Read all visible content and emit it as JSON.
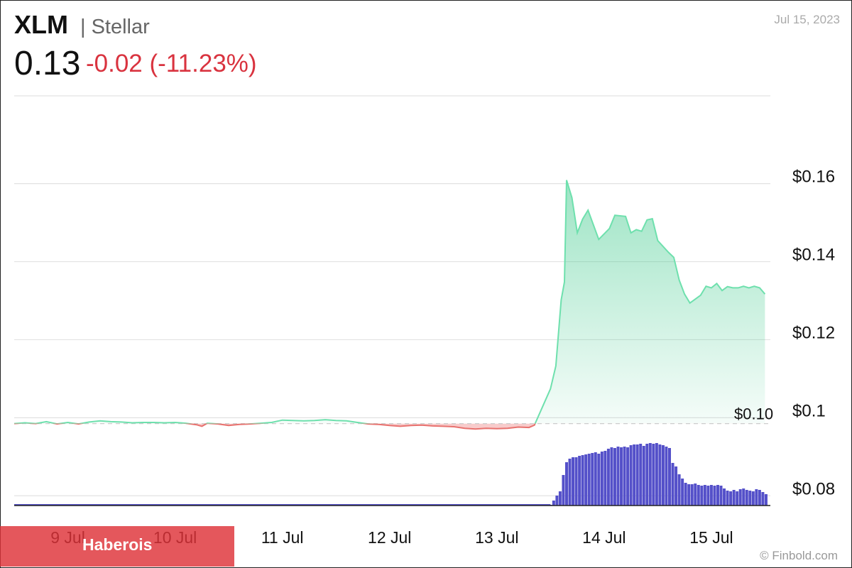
{
  "header": {
    "ticker": "XLM",
    "name": "| Stellar",
    "price": "0.13",
    "change": "-0.02 (-11.23%)",
    "date": "Jul 15, 2023"
  },
  "banner": {
    "text": "Haberois"
  },
  "credit": "© Finbold.com",
  "colors": {
    "up_line": "#6ee0ad",
    "down_line": "#e8726f",
    "up_fill": "#3cc98a",
    "down_fill": "#f08a8a",
    "volume": "#5450c9",
    "grid": "#e2e2e2",
    "text": "#111111"
  },
  "chart_data": {
    "type": "area",
    "y_ticks": [
      {
        "value": 0.16,
        "label": "$0.16"
      },
      {
        "value": 0.14,
        "label": "$0.14"
      },
      {
        "value": 0.12,
        "label": "$0.12"
      },
      {
        "value": 0.1,
        "label": "$0.1"
      },
      {
        "value": 0.08,
        "label": "$0.08"
      }
    ],
    "x_ticks": [
      {
        "value": 0.5,
        "label": "9 Jul"
      },
      {
        "value": 1.5,
        "label": "10 Jul"
      },
      {
        "value": 2.5,
        "label": "11 Jul"
      },
      {
        "value": 3.5,
        "label": "12 Jul"
      },
      {
        "value": 4.5,
        "label": "13 Jul"
      },
      {
        "value": 5.5,
        "label": "14 Jul"
      },
      {
        "value": 6.5,
        "label": "15 Jul"
      }
    ],
    "baseline": {
      "value": 0.0985,
      "label": "$0.10"
    },
    "ylim": [
      0.0775,
      0.1825
    ],
    "xlim": [
      0,
      7.05
    ],
    "series": [
      {
        "values": [
          [
            0.0,
            0.0985
          ],
          [
            0.1,
            0.0987
          ],
          [
            0.2,
            0.0985
          ],
          [
            0.3,
            0.099
          ],
          [
            0.4,
            0.0984
          ],
          [
            0.5,
            0.0988
          ],
          [
            0.6,
            0.0984
          ],
          [
            0.7,
            0.0989
          ],
          [
            0.8,
            0.0992
          ],
          [
            0.9,
            0.099
          ],
          [
            1.0,
            0.0989
          ],
          [
            1.1,
            0.0987
          ],
          [
            1.2,
            0.0988
          ],
          [
            1.3,
            0.0988
          ],
          [
            1.4,
            0.0987
          ],
          [
            1.5,
            0.0988
          ],
          [
            1.6,
            0.0986
          ],
          [
            1.7,
            0.0982
          ],
          [
            1.75,
            0.0978
          ],
          [
            1.8,
            0.0986
          ],
          [
            1.9,
            0.0984
          ],
          [
            2.0,
            0.098
          ],
          [
            2.1,
            0.0983
          ],
          [
            2.2,
            0.0984
          ],
          [
            2.3,
            0.0986
          ],
          [
            2.4,
            0.0988
          ],
          [
            2.5,
            0.0994
          ],
          [
            2.6,
            0.0993
          ],
          [
            2.7,
            0.0992
          ],
          [
            2.8,
            0.0993
          ],
          [
            2.9,
            0.0995
          ],
          [
            3.0,
            0.0993
          ],
          [
            3.1,
            0.0992
          ],
          [
            3.2,
            0.0988
          ],
          [
            3.3,
            0.0984
          ],
          [
            3.4,
            0.0983
          ],
          [
            3.5,
            0.098
          ],
          [
            3.6,
            0.0978
          ],
          [
            3.7,
            0.098
          ],
          [
            3.8,
            0.0981
          ],
          [
            3.9,
            0.0979
          ],
          [
            4.0,
            0.0978
          ],
          [
            4.1,
            0.0977
          ],
          [
            4.2,
            0.0973
          ],
          [
            4.3,
            0.0971
          ],
          [
            4.4,
            0.0973
          ],
          [
            4.5,
            0.0972
          ],
          [
            4.6,
            0.0973
          ],
          [
            4.7,
            0.0976
          ],
          [
            4.8,
            0.0975
          ],
          [
            4.85,
            0.0981
          ],
          [
            5.0,
            0.1074
          ],
          [
            5.05,
            0.1133
          ],
          [
            5.1,
            0.1302
          ],
          [
            5.13,
            0.1348
          ],
          [
            5.15,
            0.1609
          ],
          [
            5.2,
            0.1564
          ],
          [
            5.25,
            0.1474
          ],
          [
            5.3,
            0.1509
          ],
          [
            5.35,
            0.1532
          ],
          [
            5.45,
            0.1457
          ],
          [
            5.55,
            0.1485
          ],
          [
            5.6,
            0.1519
          ],
          [
            5.7,
            0.1516
          ],
          [
            5.75,
            0.1474
          ],
          [
            5.8,
            0.1482
          ],
          [
            5.85,
            0.1478
          ],
          [
            5.9,
            0.1507
          ],
          [
            5.95,
            0.151
          ],
          [
            6.0,
            0.1454
          ],
          [
            6.1,
            0.1424
          ],
          [
            6.15,
            0.1411
          ],
          [
            6.2,
            0.1353
          ],
          [
            6.25,
            0.1317
          ],
          [
            6.3,
            0.1294
          ],
          [
            6.4,
            0.1314
          ],
          [
            6.45,
            0.1337
          ],
          [
            6.5,
            0.1333
          ],
          [
            6.55,
            0.1344
          ],
          [
            6.6,
            0.1326
          ],
          [
            6.65,
            0.1336
          ],
          [
            6.7,
            0.1333
          ],
          [
            6.75,
            0.1333
          ],
          [
            6.8,
            0.1337
          ],
          [
            6.85,
            0.1333
          ],
          [
            6.9,
            0.1337
          ],
          [
            6.95,
            0.1333
          ],
          [
            7.0,
            0.1317
          ]
        ]
      }
    ],
    "volume": [
      [
        5.0,
        0.01
      ],
      [
        5.03,
        0.07
      ],
      [
        5.06,
        0.14
      ],
      [
        5.09,
        0.2
      ],
      [
        5.12,
        0.43
      ],
      [
        5.15,
        0.61
      ],
      [
        5.18,
        0.66
      ],
      [
        5.21,
        0.68
      ],
      [
        5.24,
        0.68
      ],
      [
        5.27,
        0.7
      ],
      [
        5.3,
        0.71
      ],
      [
        5.33,
        0.72
      ],
      [
        5.36,
        0.73
      ],
      [
        5.39,
        0.74
      ],
      [
        5.42,
        0.75
      ],
      [
        5.45,
        0.73
      ],
      [
        5.48,
        0.76
      ],
      [
        5.51,
        0.77
      ],
      [
        5.54,
        0.8
      ],
      [
        5.57,
        0.82
      ],
      [
        5.6,
        0.81
      ],
      [
        5.63,
        0.83
      ],
      [
        5.66,
        0.82
      ],
      [
        5.69,
        0.83
      ],
      [
        5.72,
        0.82
      ],
      [
        5.75,
        0.85
      ],
      [
        5.78,
        0.86
      ],
      [
        5.81,
        0.86
      ],
      [
        5.84,
        0.87
      ],
      [
        5.87,
        0.84
      ],
      [
        5.9,
        0.87
      ],
      [
        5.93,
        0.88
      ],
      [
        5.96,
        0.87
      ],
      [
        5.99,
        0.88
      ],
      [
        6.02,
        0.86
      ],
      [
        6.05,
        0.85
      ],
      [
        6.08,
        0.83
      ],
      [
        6.11,
        0.81
      ],
      [
        6.14,
        0.6
      ],
      [
        6.17,
        0.55
      ],
      [
        6.2,
        0.44
      ],
      [
        6.23,
        0.38
      ],
      [
        6.26,
        0.32
      ],
      [
        6.29,
        0.3
      ],
      [
        6.32,
        0.3
      ],
      [
        6.35,
        0.31
      ],
      [
        6.38,
        0.29
      ],
      [
        6.41,
        0.28
      ],
      [
        6.44,
        0.29
      ],
      [
        6.47,
        0.28
      ],
      [
        6.5,
        0.29
      ],
      [
        6.53,
        0.28
      ],
      [
        6.56,
        0.29
      ],
      [
        6.59,
        0.28
      ],
      [
        6.62,
        0.24
      ],
      [
        6.65,
        0.21
      ],
      [
        6.68,
        0.2
      ],
      [
        6.71,
        0.22
      ],
      [
        6.74,
        0.2
      ],
      [
        6.77,
        0.23
      ],
      [
        6.8,
        0.24
      ],
      [
        6.83,
        0.22
      ],
      [
        6.86,
        0.21
      ],
      [
        6.89,
        0.2
      ],
      [
        6.92,
        0.23
      ],
      [
        6.95,
        0.22
      ],
      [
        6.98,
        0.19
      ],
      [
        7.01,
        0.16
      ]
    ]
  }
}
